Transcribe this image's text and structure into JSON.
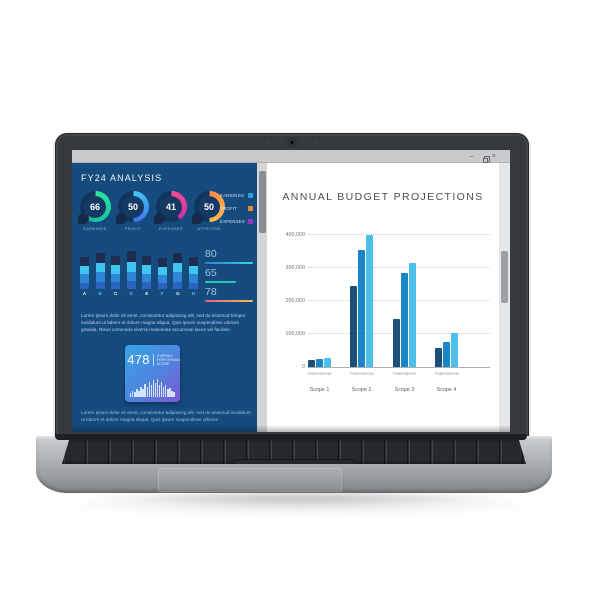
{
  "window": {
    "titlebar": {
      "minimize_glyph": "–",
      "close_glyph": "×"
    }
  },
  "dashboard": {
    "title": "FY24 ANALYSIS",
    "background_color": "#164b7e",
    "gauges": [
      {
        "value": "66",
        "label": "EARNINGS",
        "color_start": "#2de59a",
        "color_end": "#15b4a5"
      },
      {
        "value": "50",
        "label": "PROFIT",
        "color_start": "#41c9f5",
        "color_end": "#3e6ef2"
      },
      {
        "value": "41",
        "label": "EXPENSES",
        "color_start": "#ff4d8f",
        "color_end": "#d22ea4"
      },
      {
        "value": "50",
        "label": "ATTRITION",
        "color_start": "#ff8a4a",
        "color_end": "#ffc04d"
      }
    ],
    "legend": [
      {
        "label": "EARNINGS",
        "color": "#2b9fe0"
      },
      {
        "label": "PROFIT",
        "color": "#e8862d"
      },
      {
        "label": "EXPENSES",
        "color": "#9b30c9"
      }
    ],
    "stacked_bars": {
      "letters": [
        "A",
        "B",
        "C",
        "D",
        "E",
        "F",
        "G",
        "H"
      ],
      "heights": [
        32,
        36,
        33,
        38,
        33,
        31,
        36,
        32
      ],
      "letter_color_odd": "#eef6ff",
      "letter_color_even": "#4db8e8"
    },
    "stats": [
      {
        "value": "80",
        "line_from": "#3a7bd5",
        "line_to": "#35d8e0",
        "line_width_pct": 100
      },
      {
        "value": "65",
        "line_from": "#2ec4b6",
        "line_to": "#2ec4b6",
        "line_width_pct": 64
      },
      {
        "value": "78",
        "line_from": "#e85c8a",
        "line_to": "#f5c04a",
        "line_width_pct": 100
      }
    ],
    "paragraph1": "Lorem ipsum dolor sit amet, consectetur adipiscing elit, sed do eiusmod tempor incididunt ut labore et dolore magna aliqua. Quis ipsum suspendisse ultrices gravida. Risus commodo viverra maecenas accumsan lacus vel facilisis.",
    "card": {
      "value": "478",
      "caption": "OVERALL PERFORMANCE SCORE",
      "histogram": [
        4,
        6,
        5,
        8,
        6,
        10,
        8,
        13,
        10,
        15,
        12,
        17,
        14,
        18,
        12,
        15,
        10,
        12,
        8,
        9,
        6,
        5
      ]
    },
    "paragraph2": "Lorem ipsum dolor sit amet, consectetur adipiscing elit, sed do eiusmod incididunt ut labore et dolore magna aliqua. Quis ipsum suspendisse ultrices"
  },
  "chart_data": [
    {
      "id": "kpi-gauges",
      "type": "pie",
      "subtype": "donut-gauges",
      "items": [
        {
          "label": "EARNINGS",
          "value": 66
        },
        {
          "label": "PROFIT",
          "value": 50
        },
        {
          "label": "EXPENSES",
          "value": 41
        },
        {
          "label": "ATTRITION",
          "value": 50
        }
      ]
    },
    {
      "id": "mini-stacked-bars",
      "type": "bar",
      "categories": [
        "A",
        "B",
        "C",
        "D",
        "E",
        "F",
        "G",
        "H"
      ],
      "values": [
        32,
        36,
        33,
        38,
        33,
        31,
        36,
        32
      ],
      "note": "relative heights, no axis shown"
    },
    {
      "id": "annual-budget",
      "type": "bar",
      "title": "ANNUAL BUDGET PROJECTIONS",
      "groups": [
        "Scope 1",
        "Scope 2",
        "Scope 3",
        "Scope 4"
      ],
      "categories": [
        "FY19",
        "FY20",
        "FY21",
        "FY22",
        "FY23",
        "FY24",
        "FY25",
        "FY26",
        "FY27",
        "FY28",
        "FY29",
        "FY30"
      ],
      "values": [
        22000,
        25000,
        28000,
        245000,
        355000,
        400000,
        145000,
        285000,
        315000,
        58000,
        75000,
        103000
      ],
      "ylim": [
        0,
        400000
      ],
      "ytick_labels": [
        "0",
        "100,000",
        "200,000",
        "300,000",
        "400,000"
      ],
      "bar_colors_by_position": [
        "#1c4e77",
        "#1b86c6",
        "#4cc0e8"
      ],
      "grid": "horizontal-dotted",
      "legend_position": "none"
    }
  ]
}
